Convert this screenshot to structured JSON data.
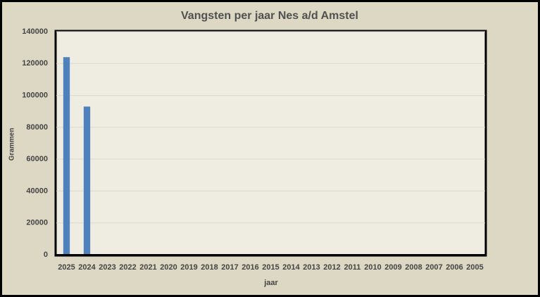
{
  "chart_data": {
    "type": "bar",
    "title": "Vangsten per jaar Nes a/d Amstel",
    "x_label": "jaar",
    "y_label": "Grammen",
    "categories": [
      "2025",
      "2024",
      "2023",
      "2022",
      "2021",
      "2020",
      "2019",
      "2018",
      "2017",
      "2016",
      "2015",
      "2014",
      "2013",
      "2012",
      "2011",
      "2010",
      "2009",
      "2008",
      "2007",
      "2006",
      "2005"
    ],
    "values": [
      124000,
      93000,
      0,
      0,
      0,
      0,
      0,
      0,
      0,
      0,
      0,
      0,
      0,
      0,
      0,
      0,
      0,
      0,
      0,
      0,
      0
    ],
    "color": "#4f81bd",
    "ylim": [
      0,
      140000
    ],
    "yticks": [
      0,
      20000,
      40000,
      60000,
      80000,
      100000,
      120000,
      140000
    ],
    "grid": true
  }
}
